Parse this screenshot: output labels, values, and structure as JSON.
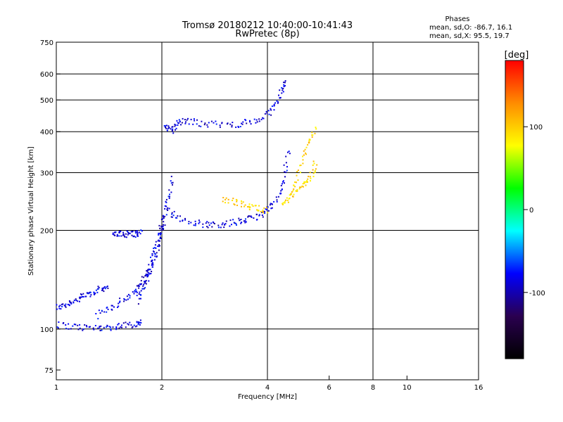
{
  "chart_data": {
    "type": "scatter",
    "title": "Tromsø 20180212 10:40:00-10:41:43",
    "subtitle": "RwPretec (8p)",
    "xlabel": "Frequency [MHz]",
    "ylabel": "Stationary phase Virtual Height [km]",
    "x_scale": "log",
    "y_scale": "log",
    "xlim": [
      1,
      16
    ],
    "ylim": [
      70,
      750
    ],
    "x_ticks": [
      1,
      2,
      4,
      6,
      8,
      10,
      16
    ],
    "y_ticks": [
      75,
      100,
      200,
      300,
      400,
      500,
      600,
      750
    ],
    "x_gridlines": [
      2,
      4,
      8
    ],
    "y_gridlines": [
      100,
      200,
      300,
      400,
      500,
      600
    ],
    "phase_box": {
      "title": "Phases",
      "line1": "mean, sd,O: -86.7, 16.1",
      "line2": "mean, sd,X:  95.5, 19.7"
    },
    "colorbar": {
      "label": "[deg]",
      "range": [
        -180,
        180
      ],
      "ticks": [
        100,
        0,
        -100
      ],
      "colors": [
        "#ff0000",
        "#ff8c00",
        "#ffff00",
        "#00ff00",
        "#00ffff",
        "#0000ff",
        "#2a0050",
        "#000000"
      ]
    },
    "series": [
      {
        "phase_mean": -86.7,
        "traces": [
          {
            "x": [
              1.0,
              1.05,
              1.1,
              1.15,
              1.2,
              1.25,
              1.3,
              1.35,
              1.4
            ],
            "y": [
              116,
              118,
              121,
              123,
              126,
              128,
              131,
              133,
              135
            ]
          },
          {
            "x": [
              1.0,
              1.1,
              1.2,
              1.3,
              1.4,
              1.5,
              1.6,
              1.7,
              1.75
            ],
            "y": [
              103,
              102,
              101,
              101,
              101,
              102,
              103,
              104,
              105
            ]
          },
          {
            "x": [
              1.45,
              1.5,
              1.55,
              1.6,
              1.65,
              1.7,
              1.75
            ],
            "y": [
              193,
              195,
              194,
              196,
              195,
              195,
              196
            ]
          },
          {
            "x": [
              1.3,
              1.4,
              1.5,
              1.6,
              1.7,
              1.75,
              1.8,
              1.85,
              1.9,
              1.95,
              2.0,
              2.05
            ],
            "y": [
              110,
              115,
              120,
              125,
              132,
              138,
              145,
              155,
              170,
              185,
              200,
              210
            ]
          },
          {
            "x": [
              1.7,
              1.75,
              1.8,
              1.85,
              1.9,
              1.95,
              2.0,
              2.05,
              2.1,
              2.15
            ],
            "y": [
              122,
              130,
              140,
              150,
              160,
              180,
              210,
              230,
              255,
              290
            ]
          },
          {
            "x": [
              2.1,
              2.2,
              2.4,
              2.6,
              2.8,
              3.0,
              3.2,
              3.4,
              3.6,
              3.8,
              4.0,
              4.2,
              4.4,
              4.5,
              4.6
            ],
            "y": [
              230,
              220,
              213,
              209,
              208,
              209,
              211,
              214,
              217,
              222,
              230,
              242,
              265,
              300,
              360
            ]
          },
          {
            "x": [
              2.05,
              2.1,
              2.15,
              2.2,
              2.3,
              2.5,
              2.7,
              3.0,
              3.3,
              3.6,
              3.9,
              4.1,
              4.3,
              4.4,
              4.5
            ],
            "y": [
              420,
              410,
              405,
              425,
              430,
              428,
              422,
              420,
              422,
              428,
              440,
              465,
              500,
              540,
              580
            ]
          }
        ]
      },
      {
        "phase_mean": 95.5,
        "traces": [
          {
            "x": [
              4.4,
              4.6,
              4.8,
              5.0,
              5.2,
              5.4,
              5.5
            ],
            "y": [
              240,
              250,
              260,
              272,
              285,
              300,
              320
            ]
          },
          {
            "x": [
              4.7,
              4.9,
              5.1,
              5.3,
              5.5
            ],
            "y": [
              260,
              300,
              340,
              380,
              410
            ]
          },
          {
            "x": [
              3.0,
              3.2,
              3.4,
              3.6,
              3.8,
              4.0
            ],
            "y": [
              248,
              245,
              240,
              236,
              233,
              230
            ]
          }
        ]
      }
    ]
  }
}
